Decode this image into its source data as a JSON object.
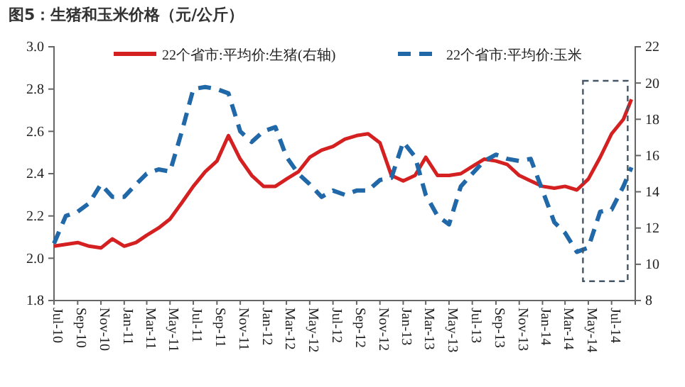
{
  "chart_data": {
    "type": "line",
    "title": "图5：生猪和玉米价格（元/公斤）",
    "x": [
      "2010-07",
      "2010-08",
      "2010-09",
      "2010-10",
      "2010-11",
      "2010-12",
      "2011-01",
      "2011-02",
      "2011-03",
      "2011-04",
      "2011-05",
      "2011-06",
      "2011-07",
      "2011-08",
      "2011-09",
      "2011-10",
      "2011-11",
      "2011-12",
      "2012-01",
      "2012-02",
      "2012-03",
      "2012-04",
      "2012-05",
      "2012-06",
      "2012-07",
      "2012-08",
      "2012-09",
      "2012-10",
      "2012-11",
      "2012-12",
      "2013-01",
      "2013-02",
      "2013-03",
      "2013-04",
      "2013-05",
      "2013-06",
      "2013-07",
      "2013-08",
      "2013-09",
      "2013-10",
      "2013-11",
      "2013-12",
      "2014-01",
      "2014-02",
      "2014-03",
      "2014-04",
      "2014-05",
      "2014-06",
      "2014-07",
      "2014-08",
      "2014-08-22"
    ],
    "series": [
      {
        "name": "22个省市:平均价:生猪(右轴)",
        "color": "#d42020",
        "axis": "y2",
        "line_style": "solid",
        "values": [
          11.0,
          11.1,
          11.2,
          11.0,
          10.9,
          11.4,
          11.0,
          11.2,
          11.6,
          12.0,
          12.5,
          13.4,
          14.3,
          15.1,
          15.7,
          17.1,
          15.8,
          14.9,
          14.3,
          14.3,
          14.7,
          15.1,
          15.9,
          16.3,
          16.5,
          16.9,
          17.1,
          17.2,
          16.7,
          14.9,
          14.6,
          14.9,
          15.9,
          14.9,
          14.9,
          15.0,
          15.4,
          15.8,
          15.7,
          15.5,
          14.9,
          14.6,
          14.3,
          14.2,
          14.3,
          14.1,
          14.7,
          15.9,
          17.2,
          18.0,
          19.1
        ]
      },
      {
        "name": "22个省市:平均价:玉米",
        "color": "#2068a8",
        "line_style": "dashed",
        "values": [
          2.07,
          2.2,
          2.22,
          2.26,
          2.35,
          2.29,
          2.29,
          2.35,
          2.4,
          2.42,
          2.41,
          2.6,
          2.8,
          2.81,
          2.8,
          2.78,
          2.6,
          2.55,
          2.6,
          2.62,
          2.48,
          2.4,
          2.35,
          2.29,
          2.32,
          2.3,
          2.32,
          2.32,
          2.37,
          2.38,
          2.55,
          2.48,
          2.3,
          2.2,
          2.16,
          2.34,
          2.4,
          2.46,
          2.49,
          2.47,
          2.46,
          2.47,
          2.32,
          2.17,
          2.12,
          2.03,
          2.05,
          2.22,
          2.23,
          2.34,
          2.43
        ]
      }
    ],
    "xlim": [
      "2010-07",
      "2014-09"
    ],
    "xticks": [
      {
        "value": "2010-07",
        "label": "Jul-10"
      },
      {
        "value": "2010-09",
        "label": "Sep-10"
      },
      {
        "value": "2010-11",
        "label": "Nov-10"
      },
      {
        "value": "2011-01",
        "label": "Jan-11"
      },
      {
        "value": "2011-03",
        "label": "Mar-11"
      },
      {
        "value": "2011-05",
        "label": "May-11"
      },
      {
        "value": "2011-07",
        "label": "Jul-11"
      },
      {
        "value": "2011-09",
        "label": "Sep-11"
      },
      {
        "value": "2011-11",
        "label": "Nov-11"
      },
      {
        "value": "2012-01",
        "label": "Jan-12"
      },
      {
        "value": "2012-03",
        "label": "Mar-12"
      },
      {
        "value": "2012-05",
        "label": "May-12"
      },
      {
        "value": "2012-07",
        "label": "Jul-12"
      },
      {
        "value": "2012-09",
        "label": "Sep-12"
      },
      {
        "value": "2012-11",
        "label": "Nov-12"
      },
      {
        "value": "2013-01",
        "label": "Jan-13"
      },
      {
        "value": "2013-03",
        "label": "Mar-13"
      },
      {
        "value": "2013-05",
        "label": "May-13"
      },
      {
        "value": "2013-07",
        "label": "Jul-13"
      },
      {
        "value": "2013-09",
        "label": "Sep-13"
      },
      {
        "value": "2013-11",
        "label": "Nov-13"
      },
      {
        "value": "2014-01",
        "label": "Jan-14"
      },
      {
        "value": "2014-03",
        "label": "Mar-14"
      },
      {
        "value": "2014-05",
        "label": "May-14"
      },
      {
        "value": "2014-07",
        "label": "Jul-14"
      }
    ],
    "ylim": [
      1.8,
      3.0
    ],
    "yticks": [
      1.8,
      {
        "value": 2,
        "label": "2.0"
      },
      2.2,
      2.4,
      2.6,
      2.8,
      {
        "value": 3,
        "label": "3.0"
      }
    ],
    "y2lim": [
      8,
      22
    ],
    "y2ticks": [
      8,
      10,
      12,
      14,
      16,
      18,
      20,
      22
    ],
    "legend": "top",
    "grid": false
  }
}
